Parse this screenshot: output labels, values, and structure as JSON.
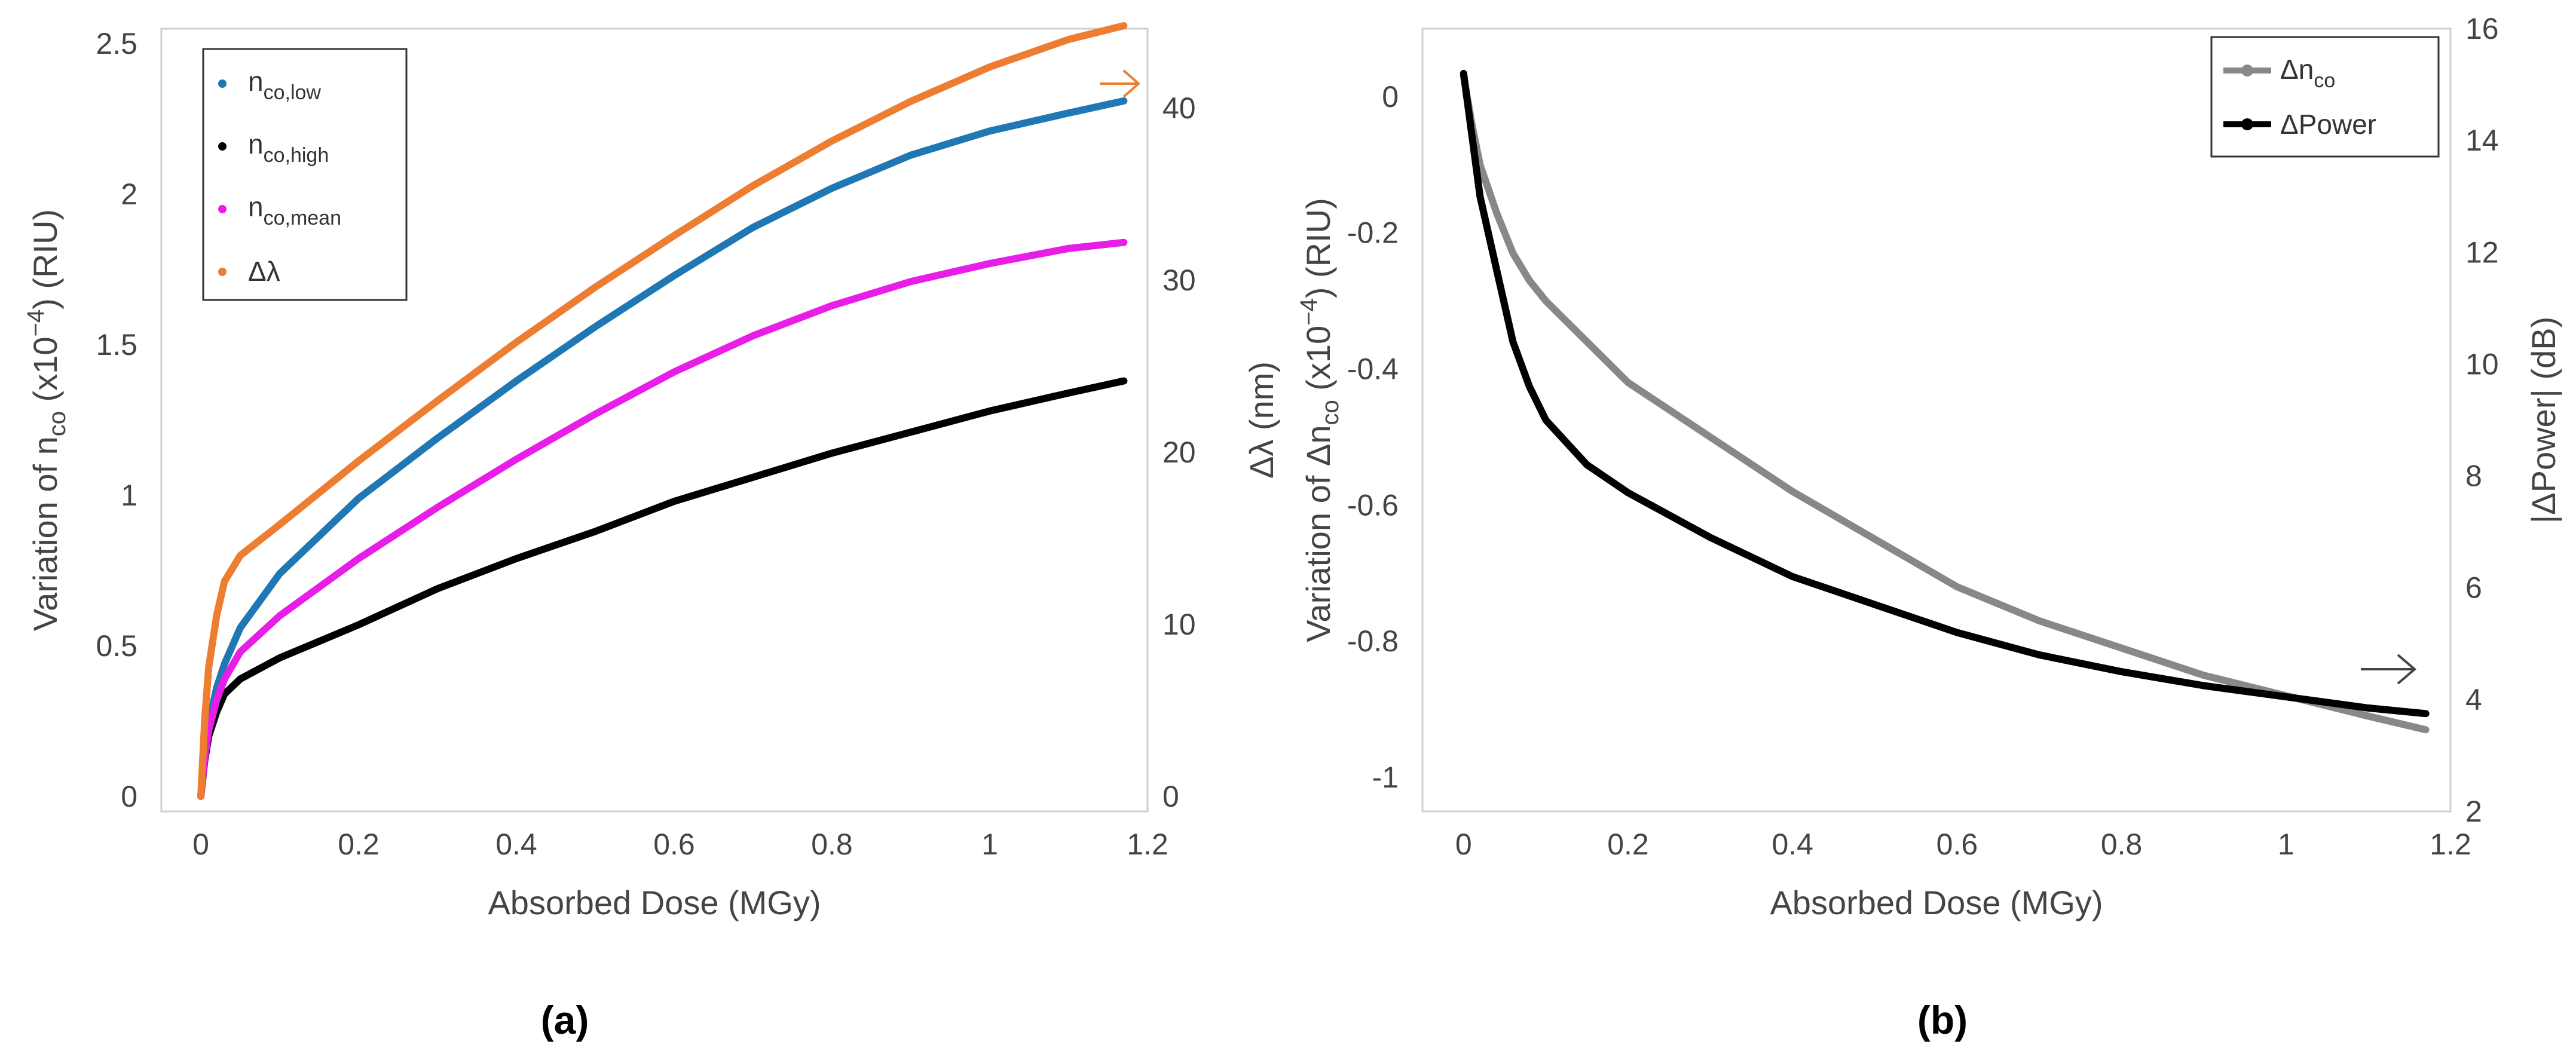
{
  "chart_data": [
    {
      "panel": "(a)",
      "type": "line",
      "xlabel": "Absorbed Dose (MGy)",
      "ylabel": "Variation of n_co (x10^-4) (RIU)",
      "ylabel_parts": {
        "pre": "Variation of n",
        "sub": "co",
        "mid": " (x10",
        "sup": "−4",
        "post": ") (RIU)"
      },
      "y2label": "Δλ (nm)",
      "xlim": [
        -0.05,
        1.2
      ],
      "ylim": [
        -0.05,
        2.55
      ],
      "y2lim": [
        -0.875,
        44.625
      ],
      "xticks": [
        0,
        0.2,
        0.4,
        0.6,
        0.8,
        1,
        1.2
      ],
      "xtick_labels": [
        "0",
        "0.2",
        "0.4",
        "0.6",
        "0.8",
        "1",
        "1.2"
      ],
      "yticks": [
        0,
        0.5,
        1,
        1.5,
        2,
        2.5
      ],
      "ytick_labels": [
        "0",
        "0.5",
        "1",
        "1.5",
        "2",
        "2.5"
      ],
      "y2ticks": [
        0,
        10,
        20,
        30,
        40
      ],
      "y2tick_labels": [
        "0",
        "10",
        "20",
        "30",
        "40"
      ],
      "x": [
        0,
        0.005,
        0.01,
        0.02,
        0.03,
        0.05,
        0.1,
        0.2,
        0.3,
        0.4,
        0.5,
        0.6,
        0.7,
        0.8,
        0.9,
        1.0,
        1.1,
        1.17
      ],
      "series": [
        {
          "name": "n_co,low",
          "label_main": "n",
          "label_sub": "co,low",
          "color": "#1f77b4",
          "axis": "left",
          "values": [
            0,
            0.15,
            0.24,
            0.36,
            0.44,
            0.56,
            0.74,
            0.99,
            1.19,
            1.38,
            1.56,
            1.73,
            1.89,
            2.02,
            2.13,
            2.21,
            2.27,
            2.31
          ]
        },
        {
          "name": "n_co,high",
          "label_main": "n",
          "label_sub": "co,high",
          "color": "#000000",
          "axis": "left",
          "values": [
            0,
            0.12,
            0.2,
            0.28,
            0.34,
            0.39,
            0.46,
            0.57,
            0.69,
            0.79,
            0.88,
            0.98,
            1.06,
            1.14,
            1.21,
            1.28,
            1.34,
            1.38
          ]
        },
        {
          "name": "n_co,mean",
          "label_main": "n",
          "label_sub": "co,mean",
          "color": "#e81ee8",
          "axis": "left",
          "values": [
            0,
            0.13,
            0.22,
            0.32,
            0.39,
            0.48,
            0.6,
            0.79,
            0.96,
            1.12,
            1.27,
            1.41,
            1.53,
            1.63,
            1.71,
            1.77,
            1.82,
            1.84
          ]
        },
        {
          "name": "Δλ",
          "label_main": "Δλ",
          "label_sub": "",
          "color": "#ed7d31",
          "axis": "right",
          "values": [
            0,
            4.5,
            7.5,
            10.5,
            12.5,
            14.0,
            15.8,
            19.5,
            23.0,
            26.4,
            29.6,
            32.6,
            35.5,
            38.1,
            40.4,
            42.4,
            44.0,
            44.8
          ]
        }
      ],
      "legend_position": "top-left",
      "annotation": "→ arrow pointing to right axis"
    },
    {
      "panel": "(b)",
      "type": "line",
      "xlabel": "Absorbed Dose (MGy)",
      "ylabel": "Variation of Δn_co (x10^-4) (RIU)",
      "ylabel_parts": {
        "pre": "Variation of Δn",
        "sub": "co",
        "mid": " (x10",
        "sup": "−4",
        "post": ") (RIU)"
      },
      "y2label": "|ΔPower| (dB)",
      "xlim": [
        -0.05,
        1.2
      ],
      "ylim": [
        -1.05,
        0.1
      ],
      "y2lim": [
        2,
        16
      ],
      "xticks": [
        0,
        0.2,
        0.4,
        0.6,
        0.8,
        1,
        1.2
      ],
      "xtick_labels": [
        "0",
        "0.2",
        "0.4",
        "0.6",
        "0.8",
        "1",
        "1.2"
      ],
      "yticks": [
        0,
        -0.2,
        -0.4,
        -0.6,
        -0.8,
        -1
      ],
      "ytick_labels": [
        "0",
        "-0.2",
        "-0.4",
        "-0.6",
        "-0.8",
        "-1"
      ],
      "y2ticks": [
        2,
        4,
        6,
        8,
        10,
        12,
        14,
        16
      ],
      "y2tick_labels": [
        "2",
        "4",
        "6",
        "8",
        "10",
        "12",
        "14",
        "16"
      ],
      "x": [
        0,
        0.01,
        0.02,
        0.04,
        0.06,
        0.08,
        0.1,
        0.15,
        0.2,
        0.3,
        0.4,
        0.5,
        0.6,
        0.7,
        0.8,
        0.9,
        1.0,
        1.1,
        1.17
      ],
      "series": [
        {
          "name": "Δn_co",
          "label_main": "Δn",
          "label_sub": "co",
          "color": "#888888",
          "axis": "left",
          "values": [
            0.03,
            -0.04,
            -0.1,
            -0.17,
            -0.23,
            -0.27,
            -0.3,
            -0.36,
            -0.42,
            -0.5,
            -0.58,
            -0.65,
            -0.72,
            -0.77,
            -0.81,
            -0.85,
            -0.88,
            -0.91,
            -0.93
          ]
        },
        {
          "name": "ΔPower",
          "label_main": "ΔPower",
          "label_sub": "",
          "color": "#000000",
          "axis": "right",
          "values": [
            15.2,
            14.1,
            13.0,
            11.7,
            10.4,
            9.6,
            9.0,
            8.2,
            7.7,
            6.9,
            6.2,
            5.7,
            5.2,
            4.8,
            4.5,
            4.25,
            4.05,
            3.85,
            3.75
          ]
        }
      ],
      "legend_position": "top-right",
      "annotation": "→ arrow pointing to right axis"
    }
  ]
}
